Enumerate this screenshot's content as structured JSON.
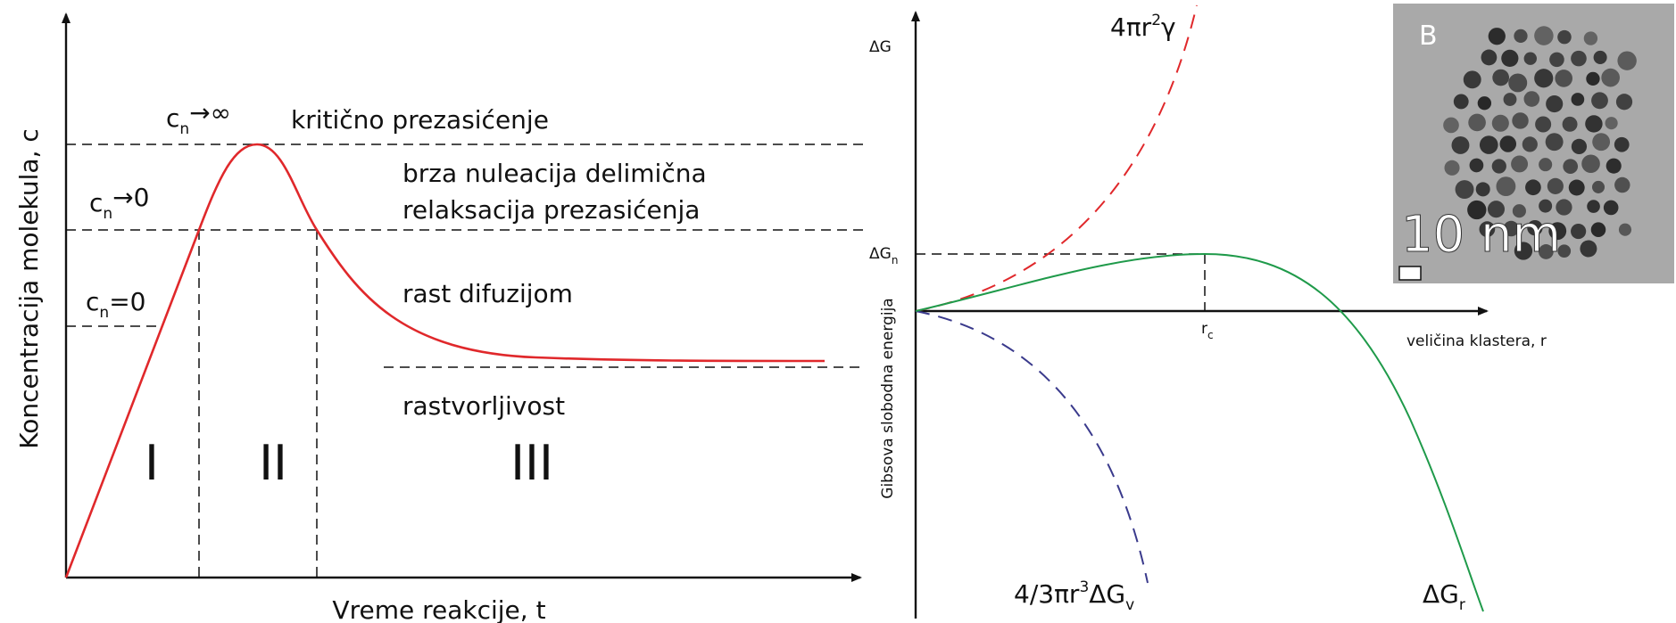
{
  "left_panel": {
    "y_axis_label": "Koncentracija molekula, c",
    "x_axis_label": "Vreme reakcije, t",
    "marker_infinity": {
      "symbol": "c",
      "subscript": "n",
      "relation": "→∞"
    },
    "marker_zero_limit": {
      "symbol": "c",
      "subscript": "n",
      "relation": "→0"
    },
    "marker_zero": {
      "symbol": "c",
      "subscript": "n",
      "relation": "=0"
    },
    "annotations": [
      "kritično prezasićenje",
      "brza nuleacija delimična",
      "relaksacija prezasićenja",
      "rast difuzijom",
      "rastvorljivost"
    ],
    "regions": [
      "I",
      "II",
      "III"
    ]
  },
  "right_panel": {
    "y_axis_symbol": "ΔG",
    "y_axis_label": "Gibsova slobodna energija",
    "x_axis_label": "veličina klastera, r",
    "critical_energy": {
      "symbol": "ΔG",
      "subscript": "n"
    },
    "critical_radius": {
      "symbol": "r",
      "subscript": "c"
    },
    "surface_term": {
      "text": "4πr",
      "sup": "2",
      "after": "γ"
    },
    "volume_term": {
      "text": "4/3πr",
      "sup": "3",
      "after": "ΔG",
      "sub": "v"
    },
    "total_term": {
      "symbol": "ΔG",
      "subscript": "r"
    }
  },
  "inset": {
    "label": "B",
    "scale_bar": "10 nm"
  }
}
